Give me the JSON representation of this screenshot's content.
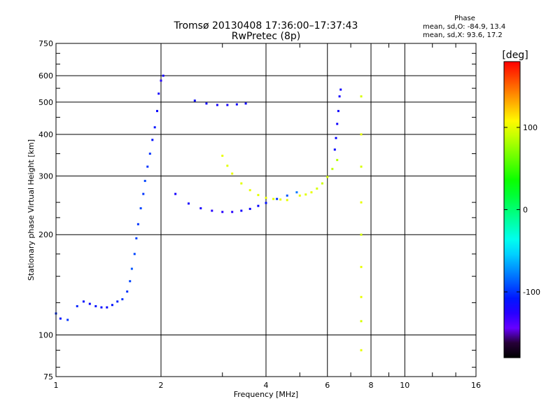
{
  "chart_data": {
    "type": "scatter",
    "title": "Tromsø 20130408 17:36:00–17:37:43",
    "subtitle": "RwPretec (8p)",
    "xlabel": "Frequency [MHz]",
    "ylabel": "Stationary phase Virtual Height [km]",
    "x_scale": "log",
    "y_scale": "log",
    "xlim": [
      1,
      16
    ],
    "ylim": [
      75,
      750
    ],
    "x_ticks": [
      1,
      2,
      4,
      6,
      8,
      10,
      16
    ],
    "x_tick_labels": [
      "1",
      "2",
      "4",
      "6",
      "8",
      "10",
      "16"
    ],
    "y_ticks": [
      75,
      100,
      200,
      300,
      400,
      500,
      600,
      750
    ],
    "y_tick_labels": [
      "75",
      "100",
      "200",
      "300",
      "400",
      "500",
      "600",
      "750"
    ],
    "grid": true,
    "colorbar": {
      "label": "[deg]",
      "range": [
        -180,
        180
      ],
      "ticks": [
        100,
        0,
        -100
      ],
      "tick_labels": [
        "100",
        "0",
        "-100"
      ]
    },
    "stats": {
      "heading": "Phase",
      "line_o": "mean, sd,O: -84.9, 13.4",
      "line_x": "mean, sd,X:  93.6, 17.2"
    },
    "series": [
      {
        "values": [
          [
            1.0,
            116,
            -100
          ],
          [
            1.03,
            112,
            -110
          ],
          [
            1.08,
            111,
            -100
          ],
          [
            1.15,
            122,
            -105
          ],
          [
            1.2,
            126,
            -110
          ],
          [
            1.25,
            124,
            -115
          ],
          [
            1.3,
            122,
            -110
          ],
          [
            1.35,
            121,
            -112
          ],
          [
            1.4,
            121,
            -115
          ],
          [
            1.45,
            123,
            -110
          ],
          [
            1.5,
            126,
            -105
          ],
          [
            1.55,
            128,
            -100
          ],
          [
            1.6,
            135,
            -100
          ],
          [
            1.63,
            145,
            -95
          ],
          [
            1.65,
            158,
            -90
          ],
          [
            1.68,
            175,
            -95
          ],
          [
            1.7,
            195,
            -95
          ],
          [
            1.72,
            215,
            -100
          ],
          [
            1.75,
            240,
            -95
          ],
          [
            1.78,
            265,
            -100
          ],
          [
            1.8,
            290,
            -95
          ],
          [
            1.83,
            320,
            -100
          ],
          [
            1.86,
            350,
            -100
          ],
          [
            1.89,
            385,
            -110
          ],
          [
            1.92,
            420,
            -110
          ],
          [
            1.95,
            470,
            -115
          ],
          [
            1.97,
            530,
            -120
          ],
          [
            2.0,
            580,
            -125
          ],
          [
            2.03,
            600,
            -120
          ]
        ]
      },
      {
        "values": [
          [
            2.2,
            265,
            -120
          ],
          [
            2.4,
            248,
            -120
          ],
          [
            2.6,
            240,
            -122
          ],
          [
            2.8,
            236,
            -125
          ],
          [
            3.0,
            234,
            -125
          ],
          [
            3.2,
            234,
            -125
          ],
          [
            3.4,
            236,
            -120
          ],
          [
            3.6,
            239,
            -118
          ],
          [
            3.8,
            244,
            -115
          ],
          [
            4.0,
            249,
            -110
          ],
          [
            4.3,
            256,
            -100
          ],
          [
            4.6,
            262,
            -90
          ],
          [
            4.9,
            268,
            -80
          ]
        ]
      },
      {
        "values": [
          [
            3.0,
            345,
            100
          ],
          [
            3.1,
            322,
            98
          ],
          [
            3.2,
            305,
            100
          ],
          [
            3.4,
            285,
            98
          ],
          [
            3.6,
            272,
            100
          ],
          [
            3.8,
            263,
            98
          ],
          [
            4.0,
            258,
            100
          ],
          [
            4.2,
            256,
            98
          ],
          [
            4.4,
            255,
            100
          ],
          [
            4.6,
            254,
            100
          ]
        ]
      },
      {
        "values": [
          [
            5.0,
            262,
            100
          ],
          [
            5.2,
            264,
            98
          ],
          [
            5.4,
            268,
            100
          ],
          [
            5.6,
            275,
            95
          ],
          [
            5.8,
            285,
            92
          ],
          [
            6.0,
            298,
            95
          ],
          [
            6.2,
            315,
            88
          ],
          [
            6.4,
            335,
            85
          ]
        ]
      },
      {
        "values": [
          [
            2.5,
            505,
            -115
          ],
          [
            2.7,
            495,
            -118
          ],
          [
            2.9,
            490,
            -120
          ],
          [
            3.1,
            490,
            -120
          ],
          [
            3.3,
            492,
            -118
          ],
          [
            3.5,
            495,
            -118
          ]
        ]
      },
      {
        "values": [
          [
            6.3,
            360,
            -115
          ],
          [
            6.35,
            390,
            -115
          ],
          [
            6.4,
            430,
            -118
          ],
          [
            6.45,
            470,
            -118
          ],
          [
            6.5,
            520,
            -120
          ],
          [
            6.55,
            545,
            -120
          ]
        ]
      },
      {
        "values": [
          [
            7.5,
            90,
            100
          ],
          [
            7.5,
            110,
            95
          ],
          [
            7.5,
            130,
            100
          ],
          [
            7.5,
            160,
            100
          ],
          [
            7.5,
            200,
            95
          ],
          [
            7.5,
            250,
            100
          ],
          [
            7.5,
            320,
            95
          ],
          [
            7.5,
            400,
            100
          ],
          [
            7.5,
            520,
            95
          ]
        ]
      }
    ]
  }
}
